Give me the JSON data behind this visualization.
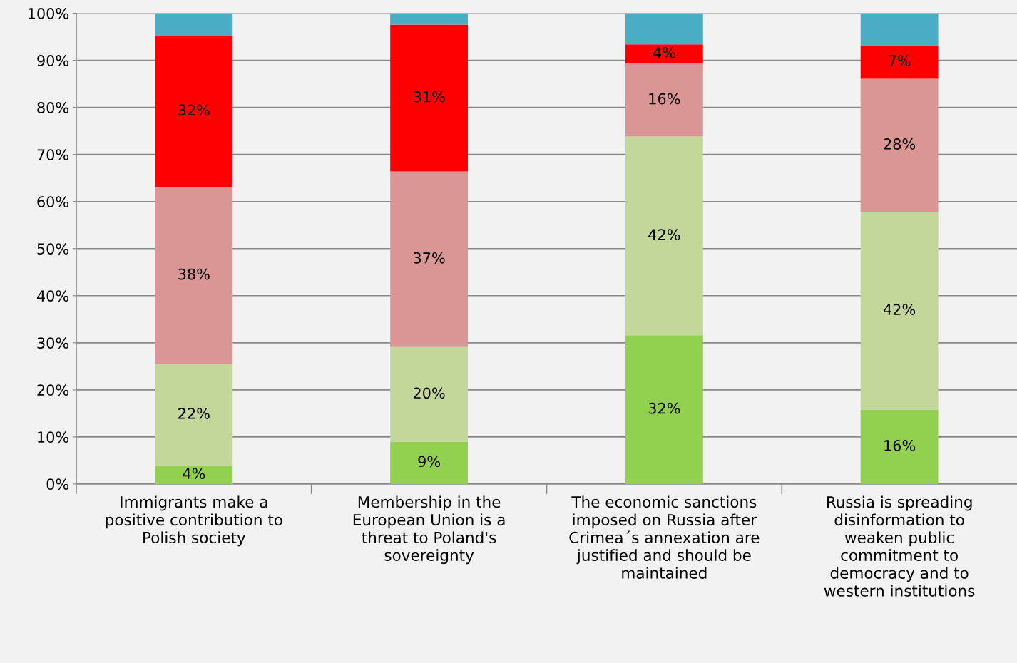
{
  "chart_data": {
    "type": "bar",
    "stacked": true,
    "grid": "y",
    "legend": false,
    "categories": [
      "Immigrants make a\npositive contribution to\nPolish society",
      "Membership in the\nEuropean Union is a\nthreat to Poland's\nsovereignty",
      "The economic sanctions\nimposed on Russia after\nCrimea´s annexation are\njustified and should be\nmaintained",
      "Russia is spreading\ndisinformation to\nweaken public\ncommitment to\ndemocracy and to\nwestern institutions"
    ],
    "ylim": [
      0,
      100
    ],
    "yticks": [
      {
        "value": 0,
        "label": "0%"
      },
      {
        "value": 10,
        "label": "10%"
      },
      {
        "value": 20,
        "label": "20%"
      },
      {
        "value": 30,
        "label": "30%"
      },
      {
        "value": 40,
        "label": "40%"
      },
      {
        "value": 50,
        "label": "50%"
      },
      {
        "value": 60,
        "label": "60%"
      },
      {
        "value": 70,
        "label": "70%"
      },
      {
        "value": 80,
        "label": "80%"
      },
      {
        "value": 90,
        "label": "90%"
      },
      {
        "value": 100,
        "label": "100%"
      }
    ],
    "series": [
      {
        "color": "#92d050",
        "values": [
          3.9,
          9.0,
          31.6,
          15.8
        ],
        "value_labels": [
          "4%",
          "9%",
          "32%",
          "16%"
        ]
      },
      {
        "color": "#c4d79b",
        "values": [
          21.6,
          20.1,
          42.2,
          42.0
        ],
        "value_labels": [
          "22%",
          "20%",
          "42%",
          "42%"
        ]
      },
      {
        "color": "#da9694",
        "values": [
          37.6,
          37.3,
          15.5,
          28.3
        ],
        "value_labels": [
          "38%",
          "37%",
          "16%",
          "28%"
        ]
      },
      {
        "color": "#ff0000",
        "values": [
          32.1,
          31.2,
          4.1,
          7.1
        ],
        "value_labels": [
          "32%",
          "31%",
          "4%",
          "7%"
        ]
      },
      {
        "color": "#4bacc6",
        "values": [
          4.8,
          2.4,
          6.6,
          6.8
        ]
      }
    ]
  }
}
